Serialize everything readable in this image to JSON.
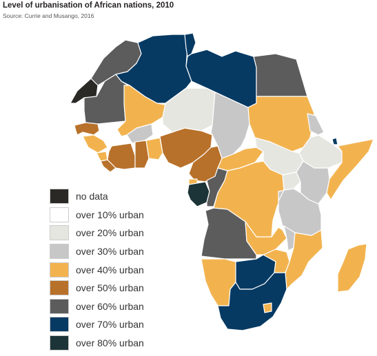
{
  "title": "Level of urbanisation of African nations, 2010",
  "source": "Source: Currie and Musango, 2016",
  "colors": {
    "no_data": "#2b2926",
    "over10": "#ffffff",
    "over20": "#e6e6e1",
    "over30": "#c7c7c7",
    "over40": "#f2b34f",
    "over50": "#b8712a",
    "over60": "#5c5c5c",
    "over70": "#063a63",
    "over80": "#1c3437",
    "border": "#ffffff"
  },
  "legend": [
    {
      "label": "no data",
      "color": "#2b2926"
    },
    {
      "label": "over 10% urban",
      "color": "#ffffff"
    },
    {
      "label": "over 20% urban",
      "color": "#e6e6e1"
    },
    {
      "label": "over 30% urban",
      "color": "#c7c7c7"
    },
    {
      "label": "over 40% urban",
      "color": "#f2b34f"
    },
    {
      "label": "over 50% urban",
      "color": "#b8712a"
    },
    {
      "label": "over 60% urban",
      "color": "#5c5c5c"
    },
    {
      "label": "over 70% urban",
      "color": "#063a63"
    },
    {
      "label": "over 80% urban",
      "color": "#1c3437"
    }
  ]
}
